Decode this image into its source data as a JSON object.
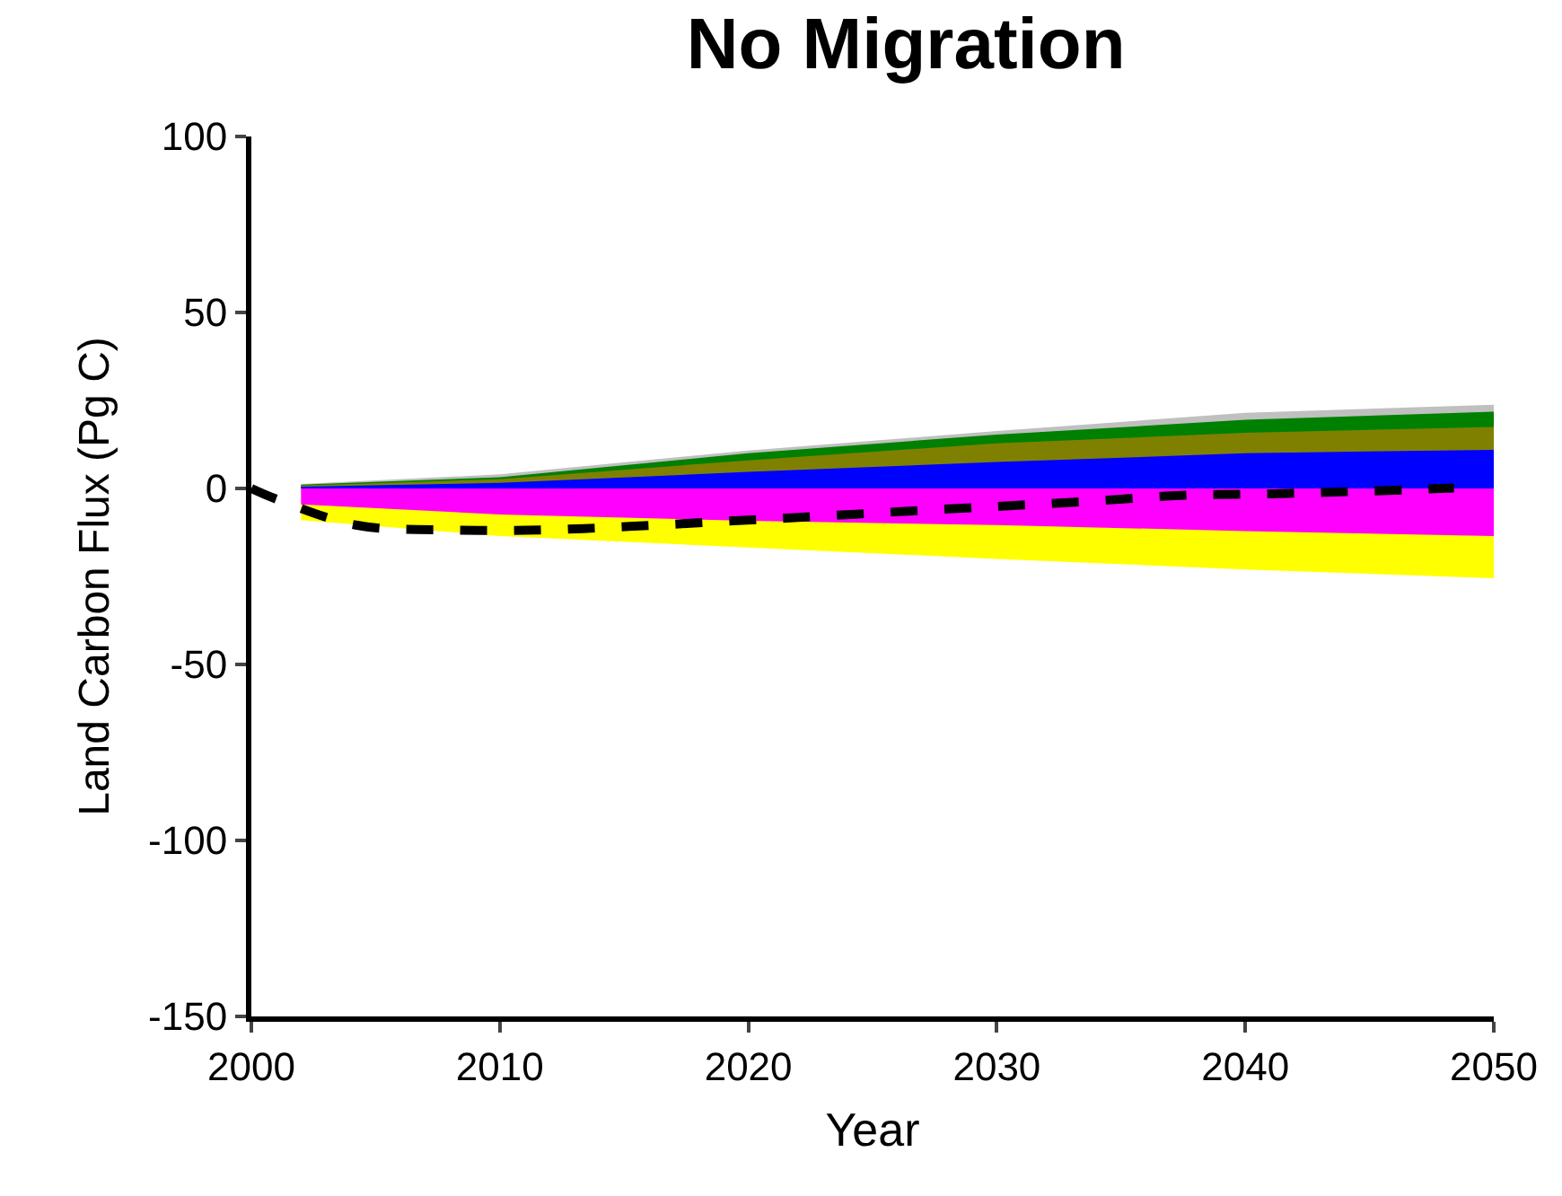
{
  "chart_data": {
    "type": "area",
    "title": "No Migration",
    "xlabel": "Year",
    "ylabel": "Land Carbon Flux (Pg C)",
    "x": [
      2002,
      2010,
      2020,
      2030,
      2040,
      2050
    ],
    "xlim": [
      2000,
      2050
    ],
    "xticks": [
      2000,
      2010,
      2020,
      2030,
      2040,
      2050
    ],
    "ylim": [
      -150,
      100
    ],
    "yticks": [
      -150,
      -100,
      -50,
      0,
      50,
      100
    ],
    "series": [
      {
        "color": "#c0c0c0",
        "values": [
          1.3,
          4,
          10.8,
          16.3,
          21.5,
          23.8
        ]
      },
      {
        "color": "#008000",
        "values": [
          1.1,
          3.2,
          10,
          15.3,
          19.5,
          21.8
        ]
      },
      {
        "color": "#808000",
        "values": [
          0.8,
          2.6,
          8,
          12.8,
          15.8,
          17.5
        ]
      },
      {
        "color": "#0000ff",
        "values": [
          0.5,
          1.6,
          4.7,
          7.5,
          10,
          11
        ]
      },
      {
        "color": "#ffff00",
        "values": [
          -9,
          -13.5,
          -16.8,
          -20,
          -23,
          -25.5
        ]
      },
      {
        "color": "#ff00ff",
        "values": [
          -4.5,
          -7.4,
          -9.2,
          -10.4,
          -12.1,
          -13.5
        ]
      },
      {
        "type": "line",
        "line_style": "dashed",
        "color": "#000000",
        "x": [
          2000,
          2001,
          2004.2,
          2007.9,
          2011.6,
          2015.2,
          2018.9,
          2022.6,
          2026.3,
          2030,
          2033.6,
          2037.4,
          2041.1,
          2044.7,
          2048.4
        ],
        "values": [
          0,
          -3,
          -10.4,
          -11.8,
          -11.8,
          -10.8,
          -9.4,
          -8,
          -6.5,
          -5.1,
          -3.7,
          -2,
          -1.5,
          -0.8,
          0.1
        ]
      }
    ]
  }
}
